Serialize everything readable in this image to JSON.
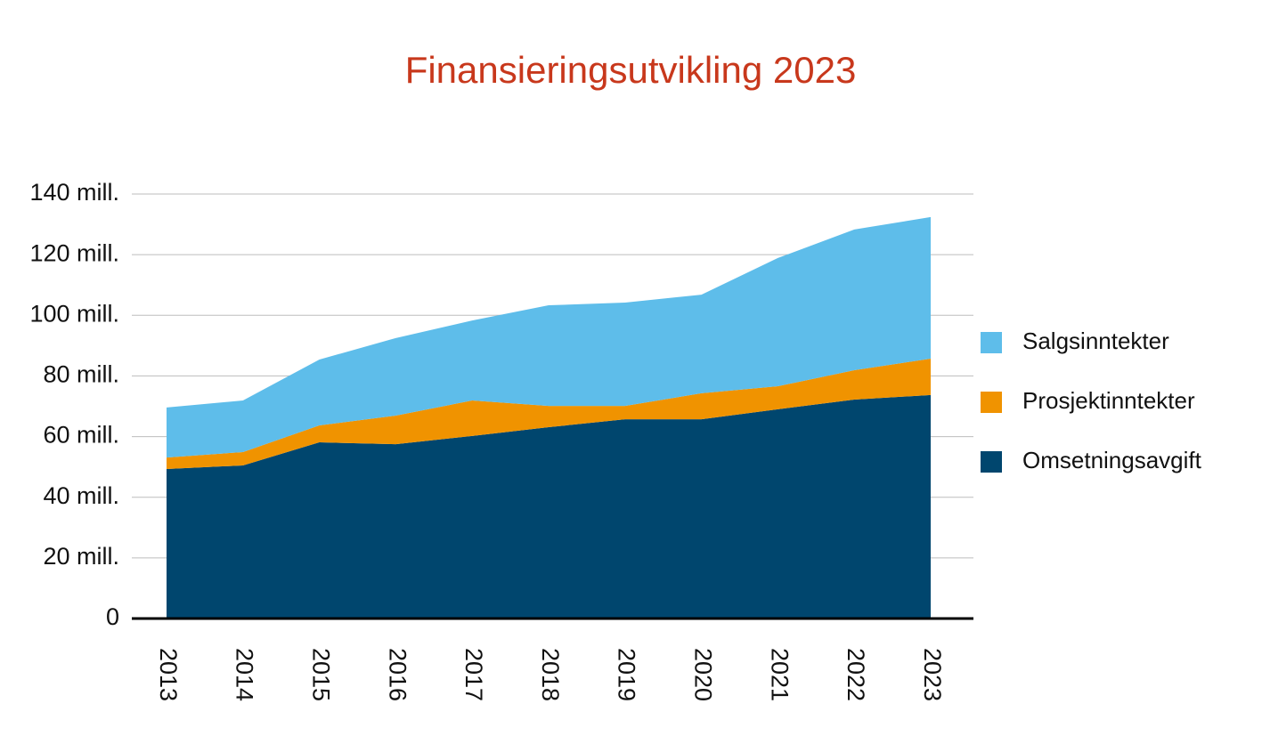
{
  "chart_data": {
    "type": "stacked-area",
    "title": "Finansieringsutvikling 2023",
    "categories": [
      "2013",
      "2014",
      "2015",
      "2016",
      "2017",
      "2018",
      "2019",
      "2020",
      "2021",
      "2022",
      "2023"
    ],
    "series": [
      {
        "name": "Omsetningsavgift",
        "color": "#00466e",
        "values": [
          49.3,
          50.5,
          58.1,
          57.5,
          60.2,
          63.1,
          65.7,
          65.7,
          69.0,
          72.2,
          73.7
        ]
      },
      {
        "name": "Prosjektinntekter",
        "color": "#f09300",
        "values": [
          3.8,
          4.4,
          5.6,
          9.4,
          11.7,
          7.0,
          4.4,
          8.6,
          7.6,
          9.7,
          12.0
        ]
      },
      {
        "name": "Salgsinntekter",
        "color": "#5ebdea",
        "values": [
          16.5,
          17.0,
          21.7,
          25.6,
          26.4,
          33.2,
          34.1,
          32.5,
          42.3,
          46.4,
          46.7
        ]
      }
    ],
    "ylim": [
      0,
      140
    ],
    "yticks": [
      0,
      {
        "value": 20,
        "label": "20 mill."
      },
      {
        "value": 40,
        "label": "40 mill."
      },
      {
        "value": 60,
        "label": "60 mill."
      },
      {
        "value": 80,
        "label": "80 mill."
      },
      {
        "value": 100,
        "label": "100 mill."
      },
      {
        "value": 120,
        "label": "120 mill."
      },
      {
        "value": 140,
        "label": "140 mill."
      }
    ],
    "grid": true,
    "legend": "right"
  }
}
